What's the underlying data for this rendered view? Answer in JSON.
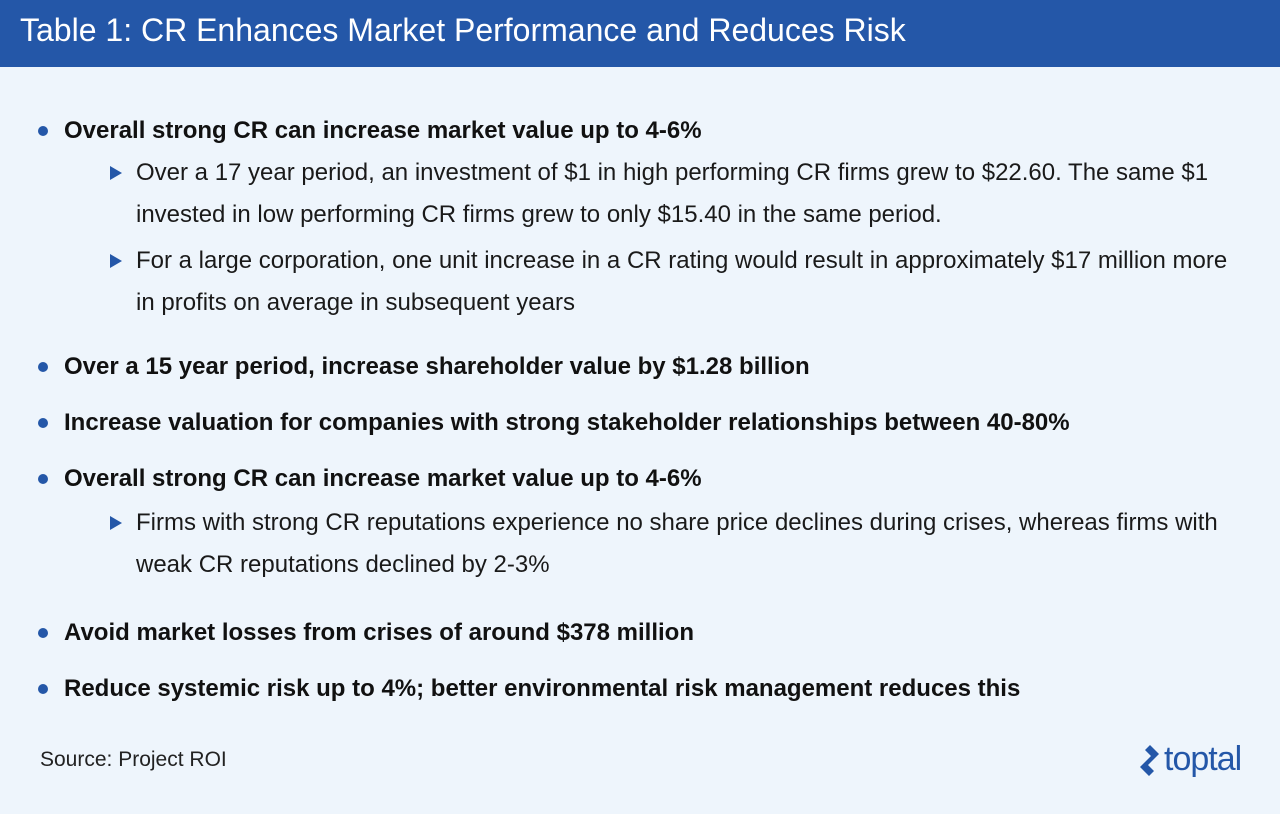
{
  "header": {
    "title": "Table 1: CR Enhances Market Performance and Reduces Risk"
  },
  "items": [
    {
      "text": "Overall strong CR can increase market value up to 4-6%",
      "subs": [
        "Over a 17 year period, an investment of $1 in high performing CR firms grew to $22.60. The same $1 invested in low performing CR firms grew to only $15.40 in the same period.",
        "For a large corporation, one unit increase in a CR rating would result in approximately $17 million more in profits on average in subsequent years"
      ]
    },
    {
      "text": "Over a 15 year period, increase shareholder value by $1.28 billion"
    },
    {
      "text": "Increase valuation for companies with strong stakeholder relationships between 40-80%"
    },
    {
      "text": "Overall strong CR can increase market value up to 4-6%",
      "subs": [
        "Firms with strong CR reputations experience no share price declines during crises, whereas firms with weak CR reputations declined by 2-3%"
      ]
    },
    {
      "text": "Avoid market losses from crises of around $378 million"
    },
    {
      "text": "Reduce systemic risk up to 4%; better environmental risk management reduces this"
    }
  ],
  "footer": {
    "source": "Source: Project ROI",
    "logo_text": "toptal"
  },
  "colors": {
    "header_bg": "#2457a8",
    "page_bg": "#eef5fc",
    "accent": "#2457a8"
  },
  "icons": {
    "bullet": "circle-bullet-icon",
    "sub_bullet": "triangle-bullet-icon",
    "logo": "toptal-logo-icon"
  }
}
